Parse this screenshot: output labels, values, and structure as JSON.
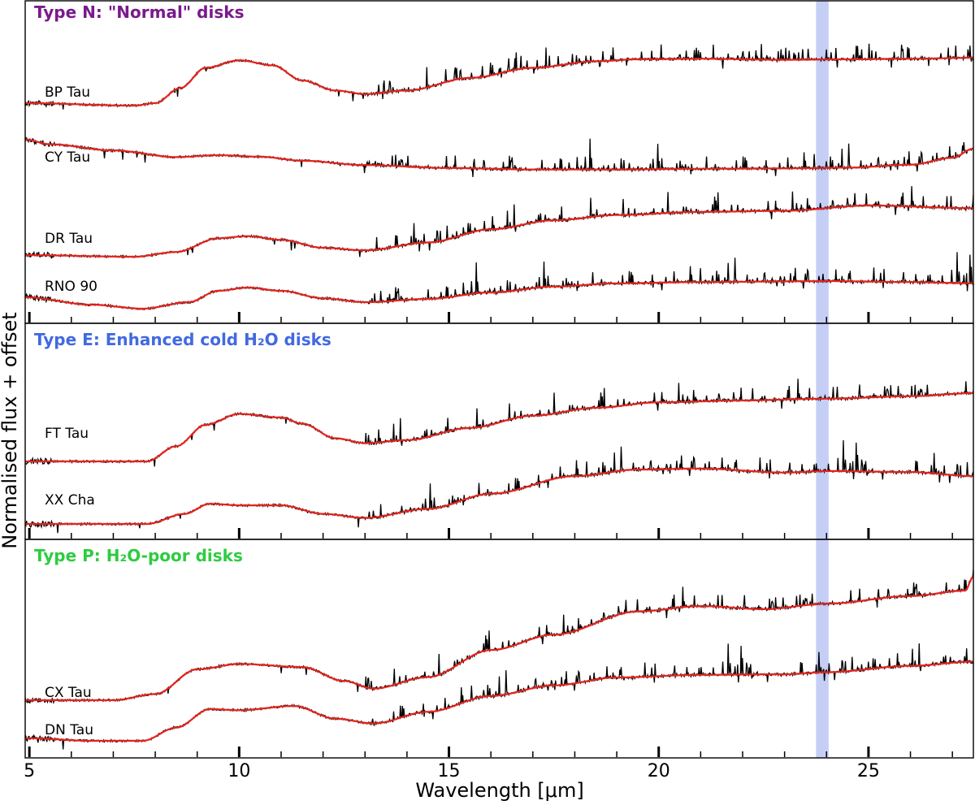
{
  "chart_data": {
    "type": "line",
    "xlabel": "Wavelength [μm]",
    "ylabel": "Normalised flux + offset",
    "xlim": [
      4.9,
      27.5
    ],
    "x_ticks": [
      5,
      10,
      15,
      20,
      25
    ],
    "x_tick_labels": [
      "5",
      "10",
      "15",
      "20",
      "25"
    ],
    "highlight_band": {
      "x0": 23.75,
      "x1": 24.05,
      "color": "#c5cef5"
    },
    "spectrum_color": "#000000",
    "model_color": "#e8221c",
    "panels": [
      {
        "title": "Type N: \"Normal\" disks",
        "title_color": "#7a1a8c",
        "series": [
          {
            "name": "BP Tau",
            "shape": [
              [
                4.9,
                0.05
              ],
              [
                7.5,
                0.0
              ],
              [
                8.0,
                0.05
              ],
              [
                8.6,
                0.35
              ],
              [
                9.2,
                0.75
              ],
              [
                10.0,
                0.9
              ],
              [
                10.8,
                0.8
              ],
              [
                11.5,
                0.5
              ],
              [
                12.3,
                0.3
              ],
              [
                13.0,
                0.23
              ],
              [
                14.0,
                0.3
              ],
              [
                15.5,
                0.55
              ],
              [
                17.0,
                0.75
              ],
              [
                18.5,
                0.88
              ],
              [
                19.5,
                0.92
              ],
              [
                21.0,
                0.93
              ],
              [
                23.0,
                0.91
              ],
              [
                24.5,
                0.92
              ],
              [
                26.0,
                0.93
              ],
              [
                27.5,
                0.95
              ]
            ]
          },
          {
            "name": "CY Tau",
            "shape": [
              [
                4.9,
                0.85
              ],
              [
                5.5,
                0.72
              ],
              [
                7.0,
                0.55
              ],
              [
                8.5,
                0.37
              ],
              [
                9.5,
                0.42
              ],
              [
                10.5,
                0.38
              ],
              [
                11.5,
                0.27
              ],
              [
                13.0,
                0.15
              ],
              [
                15.0,
                0.07
              ],
              [
                17.0,
                0.03
              ],
              [
                19.0,
                0.03
              ],
              [
                21.0,
                0.05
              ],
              [
                23.0,
                0.06
              ],
              [
                24.5,
                0.08
              ],
              [
                26.0,
                0.16
              ],
              [
                27.0,
                0.35
              ],
              [
                27.5,
                0.6
              ]
            ]
          },
          {
            "name": "DR Tau",
            "shape": [
              [
                4.9,
                0.06
              ],
              [
                7.5,
                0.03
              ],
              [
                8.5,
                0.12
              ],
              [
                9.5,
                0.38
              ],
              [
                10.2,
                0.42
              ],
              [
                11.0,
                0.35
              ],
              [
                12.0,
                0.2
              ],
              [
                13.0,
                0.15
              ],
              [
                14.5,
                0.3
              ],
              [
                16.0,
                0.55
              ],
              [
                17.5,
                0.72
              ],
              [
                19.0,
                0.82
              ],
              [
                21.0,
                0.88
              ],
              [
                23.0,
                0.9
              ],
              [
                25.0,
                1.0
              ],
              [
                27.5,
                0.95
              ]
            ]
          },
          {
            "name": "RNO 90",
            "shape": [
              [
                4.9,
                0.35
              ],
              [
                6.5,
                0.12
              ],
              [
                7.7,
                0.0
              ],
              [
                8.8,
                0.2
              ],
              [
                9.5,
                0.55
              ],
              [
                10.2,
                0.65
              ],
              [
                11.0,
                0.55
              ],
              [
                12.0,
                0.32
              ],
              [
                13.0,
                0.2
              ],
              [
                14.5,
                0.3
              ],
              [
                16.0,
                0.5
              ],
              [
                17.5,
                0.68
              ],
              [
                19.0,
                0.78
              ],
              [
                21.0,
                0.82
              ],
              [
                23.0,
                0.84
              ],
              [
                24.0,
                0.85
              ],
              [
                26.0,
                0.82
              ],
              [
                27.5,
                0.78
              ]
            ]
          }
        ]
      },
      {
        "title": "Type E: Enhanced cold H₂O disks",
        "title_color": "#4169e1",
        "series": [
          {
            "name": "FT Tau",
            "shape": [
              [
                4.9,
                0.0
              ],
              [
                7.8,
                0.0
              ],
              [
                8.5,
                0.25
              ],
              [
                9.2,
                0.6
              ],
              [
                10.0,
                0.78
              ],
              [
                11.0,
                0.72
              ],
              [
                11.5,
                0.62
              ],
              [
                12.3,
                0.38
              ],
              [
                13.0,
                0.3
              ],
              [
                14.0,
                0.35
              ],
              [
                15.5,
                0.55
              ],
              [
                17.0,
                0.75
              ],
              [
                18.5,
                0.88
              ],
              [
                20.0,
                0.97
              ],
              [
                22.0,
                1.0
              ],
              [
                24.0,
                1.03
              ],
              [
                26.0,
                1.07
              ],
              [
                27.5,
                1.12
              ]
            ]
          },
          {
            "name": "XX Cha",
            "shape": [
              [
                4.9,
                0.0
              ],
              [
                7.8,
                0.0
              ],
              [
                8.7,
                0.2
              ],
              [
                9.3,
                0.4
              ],
              [
                10.0,
                0.37
              ],
              [
                11.0,
                0.37
              ],
              [
                12.0,
                0.2
              ],
              [
                13.0,
                0.12
              ],
              [
                14.5,
                0.3
              ],
              [
                16.0,
                0.6
              ],
              [
                18.0,
                0.95
              ],
              [
                19.5,
                1.08
              ],
              [
                21.0,
                1.1
              ],
              [
                23.0,
                1.02
              ],
              [
                24.0,
                1.05
              ],
              [
                26.0,
                1.03
              ],
              [
                27.5,
                0.95
              ]
            ]
          }
        ]
      },
      {
        "title": "Type P: H₂O-poor disks",
        "title_color": "#2ecc40",
        "series": [
          {
            "name": "CX Tau",
            "shape": [
              [
                4.9,
                0.0
              ],
              [
                7.0,
                0.0
              ],
              [
                8.0,
                0.08
              ],
              [
                9.0,
                0.4
              ],
              [
                10.0,
                0.47
              ],
              [
                11.5,
                0.43
              ],
              [
                12.5,
                0.25
              ],
              [
                13.2,
                0.15
              ],
              [
                14.5,
                0.3
              ],
              [
                16.0,
                0.65
              ],
              [
                17.5,
                0.85
              ],
              [
                19.5,
                1.15
              ],
              [
                21.0,
                1.22
              ],
              [
                22.5,
                1.18
              ],
              [
                24.0,
                1.25
              ],
              [
                26.0,
                1.35
              ],
              [
                27.3,
                1.42
              ],
              [
                27.5,
                1.6
              ]
            ]
          },
          {
            "name": "DN Tau",
            "shape": [
              [
                4.9,
                0.05
              ],
              [
                6.5,
                0.0
              ],
              [
                7.7,
                0.0
              ],
              [
                8.5,
                0.25
              ],
              [
                9.3,
                0.6
              ],
              [
                10.0,
                0.58
              ],
              [
                11.3,
                0.66
              ],
              [
                12.3,
                0.42
              ],
              [
                13.2,
                0.33
              ],
              [
                14.5,
                0.55
              ],
              [
                16.0,
                0.85
              ],
              [
                17.5,
                1.05
              ],
              [
                19.0,
                1.2
              ],
              [
                21.0,
                1.25
              ],
              [
                23.0,
                1.26
              ],
              [
                24.0,
                1.3
              ],
              [
                26.0,
                1.42
              ],
              [
                27.5,
                1.5
              ]
            ]
          }
        ]
      }
    ]
  }
}
